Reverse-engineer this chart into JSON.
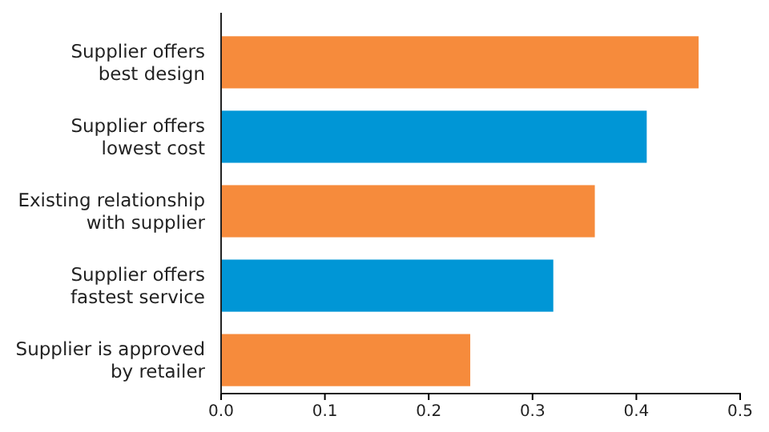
{
  "chart_data": {
    "type": "bar",
    "orientation": "horizontal",
    "categories": [
      "Supplier offers\nbest design",
      "Supplier offers\nlowest cost",
      "Existing relationship\nwith supplier",
      "Supplier offers\nfastest service",
      "Supplier is approved\nby retailer"
    ],
    "values": [
      0.46,
      0.41,
      0.36,
      0.32,
      0.24
    ],
    "colors": [
      "#f68b3c",
      "#0096d6",
      "#f68b3c",
      "#0096d6",
      "#f68b3c"
    ],
    "xlim": [
      0,
      0.5
    ],
    "xticks": [
      {
        "value": 0,
        "label": "0.0"
      },
      0.1,
      0.2,
      0.3,
      0.4,
      0.5
    ],
    "grid": false
  }
}
